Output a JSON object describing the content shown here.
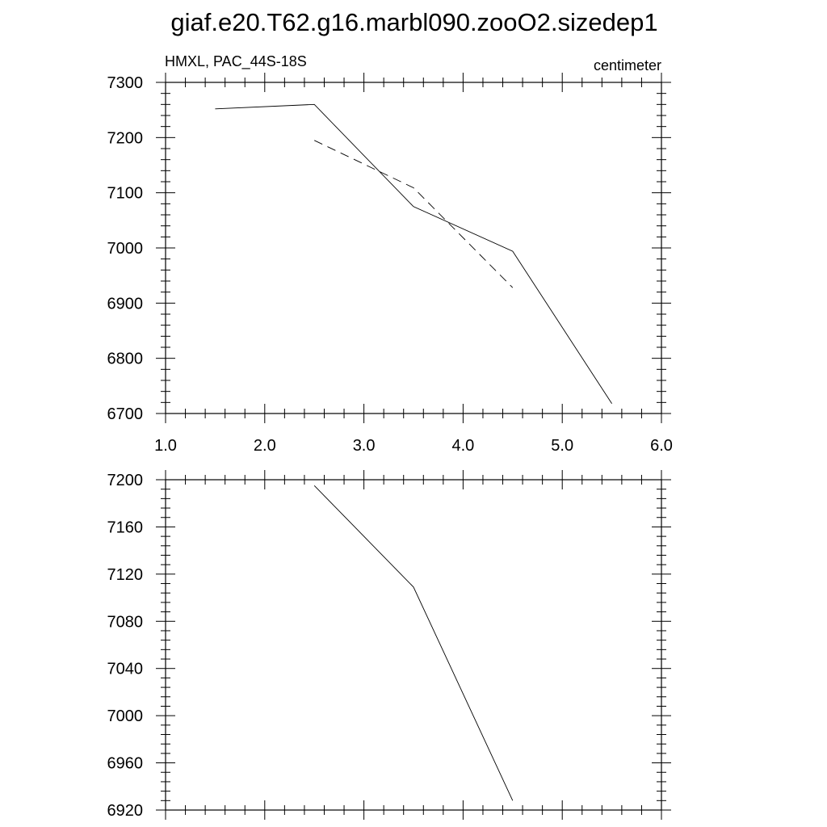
{
  "title": "giaf.e20.T62.g16.marbl090.zooO2.sizedep1",
  "chart_data": [
    {
      "type": "line",
      "left_string": "HMXL, PAC_44S-18S",
      "right_string": "centimeter",
      "xlim": [
        1.0,
        6.0
      ],
      "ylim": [
        6700,
        7300
      ],
      "x_tick_labels": [
        "1.0",
        "2.0",
        "3.0",
        "4.0",
        "5.0",
        "6.0"
      ],
      "y_tick_labels": [
        "6700",
        "6800",
        "6900",
        "7000",
        "7100",
        "7200",
        "7300"
      ],
      "series": [
        {
          "style": "solid",
          "x": [
            1.5,
            2.5,
            3.5,
            4.5,
            5.5
          ],
          "y": [
            7252,
            7260,
            7075,
            6994,
            6718
          ]
        },
        {
          "style": "dashed",
          "x": [
            2.5,
            3.5,
            4.5
          ],
          "y": [
            7195,
            7109,
            6928
          ]
        }
      ]
    },
    {
      "type": "line",
      "xlim": [
        1.0,
        6.0
      ],
      "ylim": [
        6920,
        7200
      ],
      "x_tick_labels": [],
      "y_tick_labels": [
        "6920",
        "6960",
        "7000",
        "7040",
        "7080",
        "7120",
        "7160",
        "7200"
      ],
      "series": [
        {
          "style": "solid",
          "x": [
            2.5,
            3.5,
            4.5
          ],
          "y": [
            7195,
            7109,
            6928
          ]
        }
      ]
    }
  ]
}
